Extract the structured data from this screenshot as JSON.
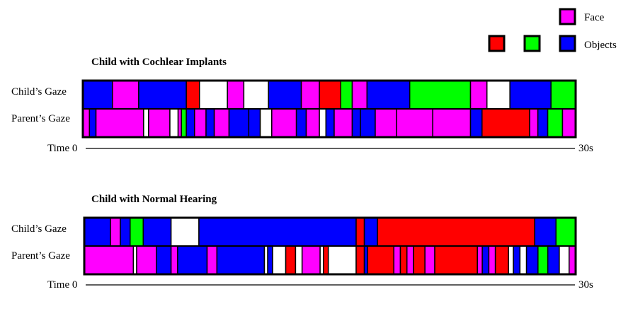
{
  "chart_data": {
    "type": "timeline",
    "time_axis": {
      "start_label": "Time 0",
      "end_label": "30s",
      "range": [
        0,
        30
      ],
      "unit": "s"
    },
    "colors": {
      "face": "#ff00ff",
      "object_red": "#ff0000",
      "object_green": "#00ff00",
      "object_blue": "#0000ff",
      "none": "#ffffff"
    },
    "legend": {
      "placement": "top-right",
      "face_label": "Face",
      "objects_label": "Objects",
      "face_swatches": [
        "face"
      ],
      "object_swatches": [
        "object_red",
        "object_green",
        "object_blue"
      ]
    },
    "panels": [
      {
        "title": "Child with Cochlear Implants",
        "rows": [
          {
            "label": "Child’s Gaze",
            "segments": [
              {
                "start": 0.0,
                "end": 1.8,
                "category": "object_blue"
              },
              {
                "start": 1.8,
                "end": 3.4,
                "category": "face"
              },
              {
                "start": 3.4,
                "end": 6.3,
                "category": "object_blue"
              },
              {
                "start": 6.3,
                "end": 7.1,
                "category": "object_red"
              },
              {
                "start": 7.1,
                "end": 8.8,
                "category": "none"
              },
              {
                "start": 8.8,
                "end": 9.8,
                "category": "face"
              },
              {
                "start": 9.8,
                "end": 11.3,
                "category": "none"
              },
              {
                "start": 11.3,
                "end": 13.3,
                "category": "object_blue"
              },
              {
                "start": 13.3,
                "end": 14.4,
                "category": "face"
              },
              {
                "start": 14.4,
                "end": 15.7,
                "category": "object_red"
              },
              {
                "start": 15.7,
                "end": 16.4,
                "category": "object_green"
              },
              {
                "start": 16.4,
                "end": 17.3,
                "category": "face"
              },
              {
                "start": 17.3,
                "end": 19.9,
                "category": "object_blue"
              },
              {
                "start": 19.9,
                "end": 23.6,
                "category": "object_green"
              },
              {
                "start": 23.6,
                "end": 24.6,
                "category": "face"
              },
              {
                "start": 24.6,
                "end": 26.0,
                "category": "none"
              },
              {
                "start": 26.0,
                "end": 28.5,
                "category": "object_blue"
              },
              {
                "start": 28.5,
                "end": 30.0,
                "category": "object_green"
              }
            ]
          },
          {
            "label": "Parent’s Gaze",
            "segments": [
              {
                "start": 0.0,
                "end": 0.4,
                "category": "face"
              },
              {
                "start": 0.4,
                "end": 0.8,
                "category": "object_blue"
              },
              {
                "start": 0.8,
                "end": 3.7,
                "category": "face"
              },
              {
                "start": 3.7,
                "end": 4.0,
                "category": "none"
              },
              {
                "start": 4.0,
                "end": 5.3,
                "category": "face"
              },
              {
                "start": 5.3,
                "end": 5.8,
                "category": "none"
              },
              {
                "start": 5.8,
                "end": 6.0,
                "category": "face"
              },
              {
                "start": 6.0,
                "end": 6.3,
                "category": "object_green"
              },
              {
                "start": 6.3,
                "end": 6.8,
                "category": "object_blue"
              },
              {
                "start": 6.8,
                "end": 7.5,
                "category": "face"
              },
              {
                "start": 7.5,
                "end": 8.0,
                "category": "object_blue"
              },
              {
                "start": 8.0,
                "end": 8.9,
                "category": "face"
              },
              {
                "start": 8.9,
                "end": 10.1,
                "category": "object_blue"
              },
              {
                "start": 10.1,
                "end": 10.8,
                "category": "object_blue"
              },
              {
                "start": 10.8,
                "end": 11.5,
                "category": "none"
              },
              {
                "start": 11.5,
                "end": 13.0,
                "category": "face"
              },
              {
                "start": 13.0,
                "end": 13.6,
                "category": "object_blue"
              },
              {
                "start": 13.6,
                "end": 14.4,
                "category": "face"
              },
              {
                "start": 14.4,
                "end": 14.8,
                "category": "none"
              },
              {
                "start": 14.8,
                "end": 15.3,
                "category": "object_blue"
              },
              {
                "start": 15.3,
                "end": 16.4,
                "category": "face"
              },
              {
                "start": 16.4,
                "end": 16.9,
                "category": "object_blue"
              },
              {
                "start": 16.9,
                "end": 17.8,
                "category": "object_blue"
              },
              {
                "start": 17.8,
                "end": 19.1,
                "category": "face"
              },
              {
                "start": 19.1,
                "end": 21.3,
                "category": "face"
              },
              {
                "start": 21.3,
                "end": 23.6,
                "category": "face"
              },
              {
                "start": 23.6,
                "end": 24.3,
                "category": "object_blue"
              },
              {
                "start": 24.3,
                "end": 27.2,
                "category": "object_red"
              },
              {
                "start": 27.2,
                "end": 27.7,
                "category": "face"
              },
              {
                "start": 27.7,
                "end": 28.3,
                "category": "object_blue"
              },
              {
                "start": 28.3,
                "end": 29.2,
                "category": "object_green"
              },
              {
                "start": 29.2,
                "end": 30.0,
                "category": "face"
              }
            ]
          }
        ]
      },
      {
        "title": "Child with Normal Hearing",
        "rows": [
          {
            "label": "Child’s Gaze",
            "segments": [
              {
                "start": 0.0,
                "end": 1.6,
                "category": "object_blue"
              },
              {
                "start": 1.6,
                "end": 2.2,
                "category": "face"
              },
              {
                "start": 2.2,
                "end": 2.8,
                "category": "object_blue"
              },
              {
                "start": 2.8,
                "end": 3.6,
                "category": "object_green"
              },
              {
                "start": 3.6,
                "end": 5.3,
                "category": "object_blue"
              },
              {
                "start": 5.3,
                "end": 7.0,
                "category": "none"
              },
              {
                "start": 7.0,
                "end": 16.6,
                "category": "object_blue"
              },
              {
                "start": 16.6,
                "end": 17.1,
                "category": "object_red"
              },
              {
                "start": 17.1,
                "end": 17.9,
                "category": "object_blue"
              },
              {
                "start": 17.9,
                "end": 27.5,
                "category": "object_red"
              },
              {
                "start": 27.5,
                "end": 28.8,
                "category": "object_blue"
              },
              {
                "start": 28.8,
                "end": 30.0,
                "category": "object_green"
              }
            ]
          },
          {
            "label": "Parent’s Gaze",
            "segments": [
              {
                "start": 0.0,
                "end": 3.0,
                "category": "face"
              },
              {
                "start": 3.0,
                "end": 3.2,
                "category": "none"
              },
              {
                "start": 3.2,
                "end": 4.4,
                "category": "face"
              },
              {
                "start": 4.4,
                "end": 5.3,
                "category": "object_blue"
              },
              {
                "start": 5.3,
                "end": 5.7,
                "category": "face"
              },
              {
                "start": 5.7,
                "end": 7.5,
                "category": "object_blue"
              },
              {
                "start": 7.5,
                "end": 8.1,
                "category": "face"
              },
              {
                "start": 8.1,
                "end": 11.0,
                "category": "object_blue"
              },
              {
                "start": 11.0,
                "end": 11.2,
                "category": "none"
              },
              {
                "start": 11.2,
                "end": 11.5,
                "category": "object_blue"
              },
              {
                "start": 11.5,
                "end": 12.3,
                "category": "none"
              },
              {
                "start": 12.3,
                "end": 12.9,
                "category": "object_red"
              },
              {
                "start": 12.9,
                "end": 13.3,
                "category": "none"
              },
              {
                "start": 13.3,
                "end": 14.4,
                "category": "face"
              },
              {
                "start": 14.4,
                "end": 14.6,
                "category": "none"
              },
              {
                "start": 14.6,
                "end": 14.9,
                "category": "object_red"
              },
              {
                "start": 14.9,
                "end": 16.6,
                "category": "none"
              },
              {
                "start": 16.6,
                "end": 17.1,
                "category": "object_red"
              },
              {
                "start": 17.1,
                "end": 17.3,
                "category": "object_blue"
              },
              {
                "start": 17.3,
                "end": 18.9,
                "category": "object_red"
              },
              {
                "start": 18.9,
                "end": 19.3,
                "category": "face"
              },
              {
                "start": 19.3,
                "end": 19.7,
                "category": "object_red"
              },
              {
                "start": 19.7,
                "end": 20.1,
                "category": "face"
              },
              {
                "start": 20.1,
                "end": 20.8,
                "category": "object_red"
              },
              {
                "start": 20.8,
                "end": 21.4,
                "category": "face"
              },
              {
                "start": 21.4,
                "end": 24.0,
                "category": "object_red"
              },
              {
                "start": 24.0,
                "end": 24.3,
                "category": "face"
              },
              {
                "start": 24.3,
                "end": 24.7,
                "category": "object_blue"
              },
              {
                "start": 24.7,
                "end": 25.1,
                "category": "face"
              },
              {
                "start": 25.1,
                "end": 25.9,
                "category": "object_red"
              },
              {
                "start": 25.9,
                "end": 26.2,
                "category": "none"
              },
              {
                "start": 26.2,
                "end": 26.6,
                "category": "object_blue"
              },
              {
                "start": 26.6,
                "end": 27.0,
                "category": "none"
              },
              {
                "start": 27.0,
                "end": 27.7,
                "category": "object_blue"
              },
              {
                "start": 27.7,
                "end": 28.3,
                "category": "object_green"
              },
              {
                "start": 28.3,
                "end": 29.0,
                "category": "object_blue"
              },
              {
                "start": 29.0,
                "end": 29.6,
                "category": "none"
              },
              {
                "start": 29.6,
                "end": 30.0,
                "category": "face"
              }
            ]
          }
        ]
      }
    ]
  }
}
